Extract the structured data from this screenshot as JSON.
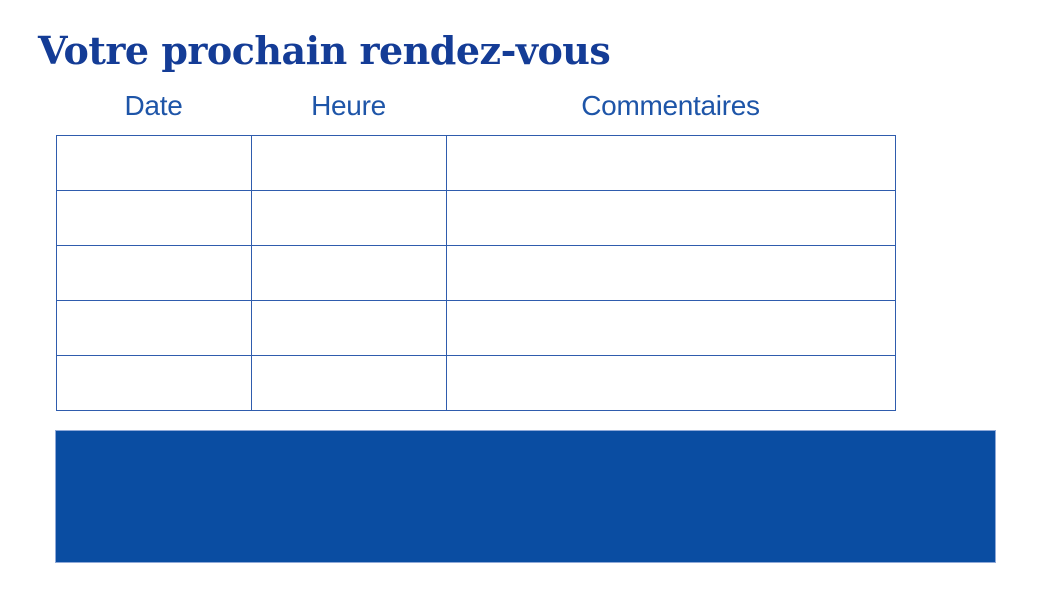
{
  "slide": {
    "title": "Votre prochain rendez-vous",
    "table": {
      "headers": [
        "Date",
        "Heure",
        "Commentaires"
      ],
      "rows": [
        [
          "",
          "",
          ""
        ],
        [
          "",
          "",
          ""
        ],
        [
          "",
          "",
          ""
        ],
        [
          "",
          "",
          ""
        ],
        [
          "",
          "",
          ""
        ]
      ]
    },
    "banner": {
      "text": ""
    },
    "colors": {
      "background": "#ffffff",
      "title_text": "#143c96",
      "header_text": "#1e55a8",
      "table_border": "#2f5cad",
      "banner_fill": "#0a4da2",
      "banner_edge": "#8fa9d8"
    }
  }
}
